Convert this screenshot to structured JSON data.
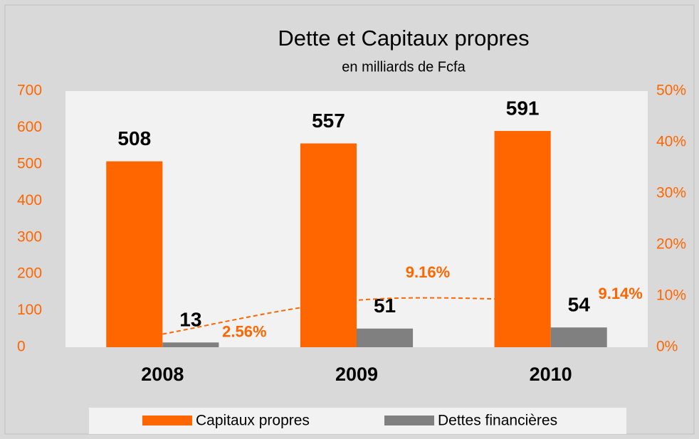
{
  "chart_data": {
    "type": "bar",
    "title": "Dette et Capitaux propres",
    "subtitle": "en milliards de  Fcfa",
    "categories": [
      "2008",
      "2009",
      "2010"
    ],
    "series": [
      {
        "name": "Capitaux propres",
        "color": "#ff6600",
        "values": [
          508,
          557,
          591
        ]
      },
      {
        "name": "Dettes financières",
        "color": "#808080",
        "values": [
          13,
          51,
          54
        ]
      },
      {
        "type": "line",
        "axis": "y2",
        "color": "#ff6600",
        "dashed": true,
        "values": [
          2.56,
          9.16,
          9.14
        ],
        "value_labels": [
          "2.56%",
          "9.16%",
          "9.14%"
        ]
      }
    ],
    "ylim": [
      0,
      700
    ],
    "yticks": [
      0,
      100,
      200,
      300,
      400,
      500,
      600,
      700
    ],
    "y2lim": [
      0,
      50
    ],
    "y2ticks": [
      {
        "value": 0,
        "label": "0%"
      },
      {
        "value": 10,
        "label": "10%"
      },
      {
        "value": 20,
        "label": "20%"
      },
      {
        "value": 30,
        "label": "30%"
      },
      {
        "value": 40,
        "label": "40%"
      },
      {
        "value": 50,
        "label": "50%"
      }
    ],
    "grid": false,
    "legend": "bottom"
  }
}
